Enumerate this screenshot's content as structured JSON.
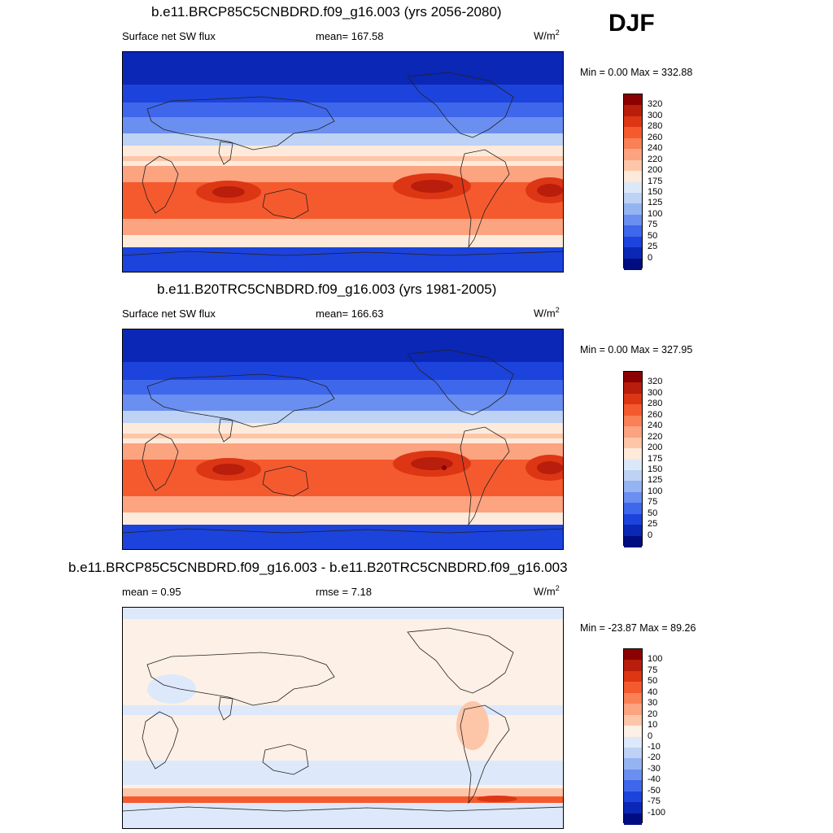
{
  "season": "DJF",
  "panels": [
    {
      "title": "b.e11.BRCP85C5CNBDRD.f09_g16.003 (yrs 2056-2080)",
      "left_label": "Surface net SW flux",
      "center_label": "mean= 167.58",
      "units": "W/m",
      "units_sup": "2",
      "minmax": "Min =   0.00 Max = 332.88",
      "colorbar_labels": [
        "320",
        "300",
        "280",
        "260",
        "240",
        "220",
        "200",
        "175",
        "150",
        "125",
        "100",
        "75",
        "50",
        "25",
        "0"
      ],
      "colorbar_colors": [
        "#8b0000",
        "#b81e0b",
        "#dd3615",
        "#f55a2e",
        "#fa8055",
        "#fca380",
        "#fec6a9",
        "#feeadb",
        "#dbe8f8",
        "#bdd2f4",
        "#94b3f1",
        "#6a8ff0",
        "#3f67ec",
        "#1c43dc",
        "#0a27b6",
        "#000d80"
      ]
    },
    {
      "title": "b.e11.B20TRC5CNBDRD.f09_g16.003 (yrs 1981-2005)",
      "left_label": "Surface net SW flux",
      "center_label": "mean= 166.63",
      "units": "W/m",
      "units_sup": "2",
      "minmax": "Min =   0.00 Max = 327.95",
      "colorbar_labels": [
        "320",
        "300",
        "280",
        "260",
        "240",
        "220",
        "200",
        "175",
        "150",
        "125",
        "100",
        "75",
        "50",
        "25",
        "0"
      ],
      "colorbar_colors": [
        "#8b0000",
        "#b81e0b",
        "#dd3615",
        "#f55a2e",
        "#fa8055",
        "#fca380",
        "#fec6a9",
        "#feeadb",
        "#dbe8f8",
        "#bdd2f4",
        "#94b3f1",
        "#6a8ff0",
        "#3f67ec",
        "#1c43dc",
        "#0a27b6",
        "#000d80"
      ]
    },
    {
      "title": "b.e11.BRCP85C5CNBDRD.f09_g16.003 - b.e11.B20TRC5CNBDRD.f09_g16.003",
      "left_label": "mean =   0.95",
      "center_label": "rmse =   7.18",
      "units": "W/m",
      "units_sup": "2",
      "minmax": "Min = -23.87 Max =  89.26",
      "colorbar_labels": [
        "100",
        "75",
        "50",
        "40",
        "30",
        "20",
        "10",
        "0",
        "-10",
        "-20",
        "-30",
        "-40",
        "-50",
        "-75",
        "-100"
      ],
      "colorbar_colors": [
        "#8b0000",
        "#b81e0b",
        "#dd3615",
        "#f55a2e",
        "#fa8055",
        "#fca380",
        "#fec6a9",
        "#fdf0e6",
        "#dde9fb",
        "#bdd2f4",
        "#94b3f1",
        "#6a8ff0",
        "#3f67ec",
        "#1c43dc",
        "#0a27b6",
        "#000d80"
      ]
    }
  ]
}
